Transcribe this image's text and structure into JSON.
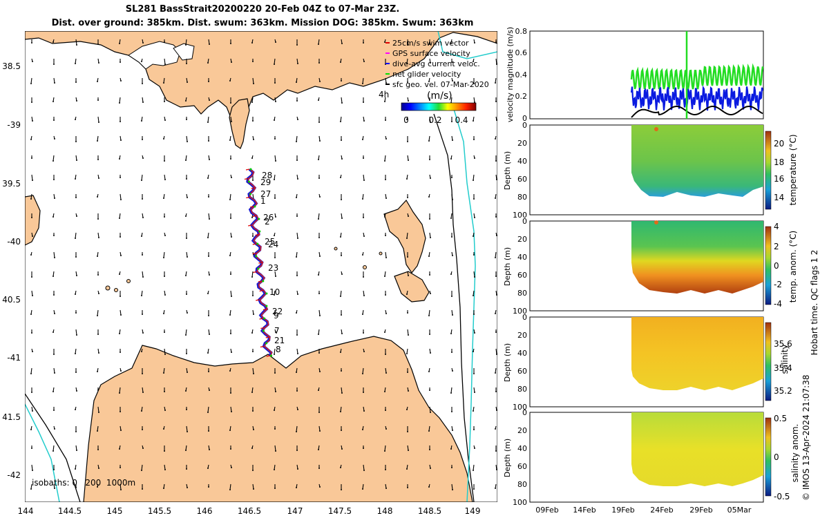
{
  "header": {
    "title_line1": "SL281 BassStrait20200220 20-Feb 04Z to 07-Mar 23Z.",
    "title_line2": "Dist. over ground: 385km. Dist. swum: 363km. Mission DOG: 385km. Swum: 363km"
  },
  "map": {
    "lon_ticks": [
      "144",
      "144.5",
      "145",
      "145.5",
      "146",
      "146.5",
      "147",
      "147.5",
      "148",
      "148.5",
      "149"
    ],
    "lat_ticks": [
      "38.5",
      "-39",
      "39.5",
      "-40",
      "40.5",
      "-41",
      "41.5",
      "-42"
    ],
    "isobath_label": "isobaths: 0   200  1000m",
    "legend": {
      "items": [
        {
          "label": "25cm/s swim vector",
          "color": "#e00000"
        },
        {
          "label": "GPS surface velocity",
          "color": "#ff00ff"
        },
        {
          "label": "dive-avg current veloc.",
          "color": "#0000ff"
        },
        {
          "label": "net glider velocity",
          "color": "#00e000"
        },
        {
          "label": "sfc geo. vel. 07-Mar-2020",
          "color": "#000000"
        }
      ],
      "interval": "4h",
      "colorbar_label": "(m/s)",
      "colorbar_ticks": [
        "0",
        "0.2",
        "0.4"
      ]
    },
    "track_labels": [
      "28",
      "29",
      "27",
      "1",
      "26",
      "2",
      "25",
      "24",
      "23",
      "10",
      "22",
      "9",
      "7",
      "21",
      "8"
    ]
  },
  "panels": {
    "velocity": {
      "ylabel": "velocity magnitude (m/s)",
      "yticks": [
        "0.8",
        "0.6",
        "0.4",
        "0.2",
        "0"
      ]
    },
    "depth_ylabel": "Depth (m)",
    "depth_ticks": [
      "0",
      "20",
      "40",
      "60",
      "80",
      "100"
    ],
    "temperature": {
      "label": "temperature (°C)",
      "ticks": [
        "20",
        "18",
        "16",
        "14"
      ]
    },
    "temp_anom": {
      "label": "temp. anom. (°C)",
      "ticks": [
        "4",
        "2",
        "0",
        "-2",
        "-4"
      ]
    },
    "salinity": {
      "label": "salinity",
      "ticks": [
        "35.6",
        "35.4",
        "35.2"
      ]
    },
    "sal_anom": {
      "label": "salinity anom.",
      "ticks": [
        "0.5",
        "0",
        "-0.5"
      ]
    },
    "date_ticks": [
      "09Feb",
      "14Feb",
      "19Feb",
      "24Feb",
      "29Feb",
      "05Mar"
    ]
  },
  "qc_label": "Hobart time. QC flags 1  2",
  "credit": "© IMOS 13-Apr-2024 21:07:38"
}
